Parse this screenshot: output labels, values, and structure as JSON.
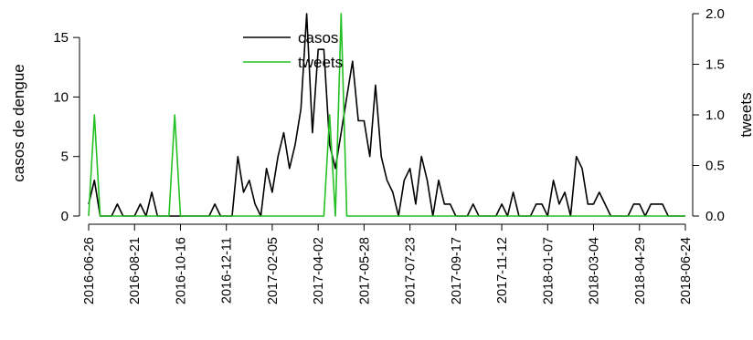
{
  "chart_data": {
    "type": "line",
    "x_start": "2016-06-26",
    "x_step_days": 7,
    "xlim": [
      "2016-06-26",
      "2018-06-24"
    ],
    "x_tick_labels": [
      "2016-06-26",
      "2016-08-21",
      "2016-10-16",
      "2016-12-11",
      "2017-02-05",
      "2017-04-02",
      "2017-05-28",
      "2017-07-23",
      "2017-09-17",
      "2017-11-12",
      "2018-01-07",
      "2018-03-04",
      "2018-04-29",
      "2018-06-24"
    ],
    "ylabel_left": "casos de dengue",
    "ylabel_right": "tweets",
    "ylim_left": [
      0,
      17
    ],
    "ylim_right": [
      0,
      2
    ],
    "y_ticks_left": [
      "0",
      "5",
      "10",
      "15"
    ],
    "y_ticks_right": [
      "0.0",
      "0.5",
      "1.0",
      "1.5",
      "2.0"
    ],
    "legend": {
      "position": "top-center",
      "entries": [
        "casos",
        "tweets"
      ]
    },
    "series": [
      {
        "name": "casos",
        "axis": "left",
        "color": "#000000",
        "values": [
          1,
          3,
          0,
          0,
          0,
          1,
          0,
          0,
          0,
          1,
          0,
          2,
          0,
          0,
          0,
          0,
          0,
          0,
          0,
          0,
          0,
          0,
          1,
          0,
          0,
          0,
          5,
          2,
          3,
          1,
          0,
          4,
          2,
          5,
          7,
          4,
          6,
          9,
          17,
          7,
          14,
          14,
          6,
          4,
          7,
          10,
          13,
          8,
          8,
          5,
          11,
          5,
          3,
          2,
          0,
          3,
          4,
          1,
          5,
          3,
          0,
          3,
          1,
          1,
          0,
          0,
          0,
          1,
          0,
          0,
          0,
          0,
          1,
          0,
          2,
          0,
          0,
          0,
          1,
          1,
          0,
          3,
          1,
          2,
          0,
          5,
          4,
          1,
          1,
          2,
          1,
          0,
          0,
          0,
          0,
          1,
          1,
          0,
          1,
          1,
          1,
          0,
          0,
          0,
          0
        ]
      },
      {
        "name": "tweets",
        "axis": "right",
        "color": "#22c022",
        "values": [
          0,
          1,
          0,
          0,
          0,
          0,
          0,
          0,
          0,
          0,
          0,
          0,
          0,
          0,
          0,
          1,
          0,
          0,
          0,
          0,
          0,
          0,
          0,
          0,
          0,
          0,
          0,
          0,
          0,
          0,
          0,
          0,
          0,
          0,
          0,
          0,
          0,
          0,
          0,
          0,
          0,
          0,
          1,
          0,
          2,
          0,
          0,
          0,
          0,
          0,
          0,
          0,
          0,
          0,
          0,
          0,
          0,
          0,
          0,
          0,
          0,
          0,
          0,
          0,
          0,
          0,
          0,
          0,
          0,
          0,
          0,
          0,
          0,
          0,
          0,
          0,
          0,
          0,
          0,
          0,
          0,
          0,
          0,
          0,
          0,
          0,
          0,
          0,
          0,
          0,
          0,
          0,
          0,
          0,
          0,
          0,
          0,
          0,
          0,
          0,
          0,
          0,
          0,
          0,
          0
        ]
      }
    ]
  }
}
